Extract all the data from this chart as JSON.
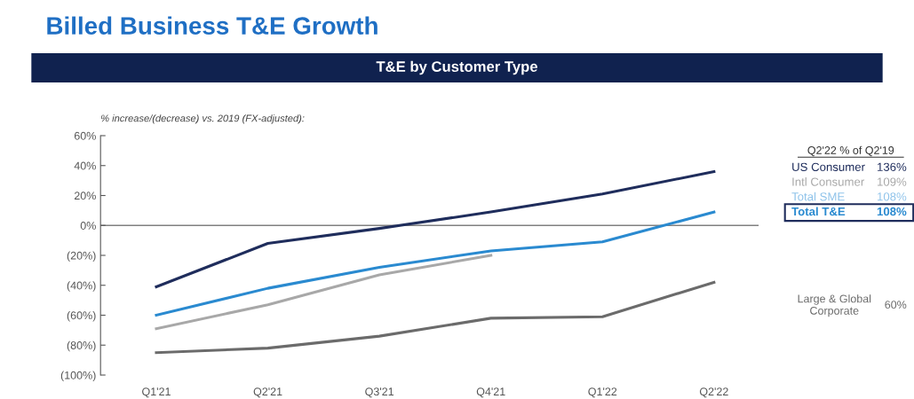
{
  "chart_data": {
    "type": "line",
    "title": "Billed Business T&E Growth",
    "subtitle": "T&E by Customer Type",
    "legend_title": "Q2'22 % of Q2'19",
    "annotations": [
      "% increase/(decrease) vs. 2019 (FX-adjusted):",
      "136%",
      "109%",
      "108%",
      "108%",
      "60%"
    ],
    "categories": [
      "Q1'21",
      "Q2'21",
      "Q3'21",
      "Q4'21",
      "Q1'22",
      "Q2'22"
    ],
    "series": [
      {
        "name": "US Consumer",
        "color": "#1f2d5c",
        "values": [
          -41,
          -12,
          -2,
          9,
          21,
          36
        ]
      },
      {
        "name": "Intl Consumer",
        "color": "#a8a8a8",
        "values": [
          -69,
          -53,
          -33,
          -20,
          null,
          null
        ]
      },
      {
        "name": "Total SME",
        "color": "#8fc3ea",
        "values": [
          null,
          null,
          null,
          null,
          null,
          null
        ]
      },
      {
        "name": "Total T&E",
        "color": "#2a8ad0",
        "values": [
          -60,
          -42,
          -28,
          -17,
          -11,
          9
        ]
      },
      {
        "name": "Large & Global\nCorporate",
        "color": "#6b6b6b",
        "values": [
          -85,
          -82,
          -74,
          -62,
          -61,
          -38
        ]
      }
    ],
    "ylim": [
      -100,
      60
    ],
    "yticks": [
      {
        "value": 60,
        "label": "60%"
      },
      {
        "value": 40,
        "label": "40%"
      },
      {
        "value": 20,
        "label": "20%"
      },
      {
        "value": 0,
        "label": "0%"
      },
      {
        "value": -20,
        "label": "(20%)"
      },
      {
        "value": -40,
        "label": "(40%)"
      },
      {
        "value": -60,
        "label": "(60%)"
      },
      {
        "value": -80,
        "label": "(80%)"
      },
      {
        "value": -100,
        "label": "(100%)"
      }
    ],
    "ref_lines": [
      {
        "axis": "y",
        "value": 0,
        "color": "#808080"
      }
    ],
    "grid": false,
    "legend": "right",
    "marker": "none",
    "line_style": "solid"
  }
}
